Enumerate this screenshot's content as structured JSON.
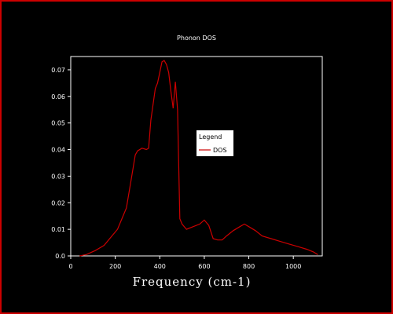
{
  "chart_data": {
    "type": "line",
    "title": "Phonon DOS",
    "xlabel": "Frequency (cm-1)",
    "ylabel": "",
    "xlim": [
      0,
      1130
    ],
    "ylim": [
      0,
      0.075
    ],
    "x_ticks": [
      0,
      200,
      400,
      600,
      800,
      1000
    ],
    "x_tick_labels": [
      "0",
      "200",
      "400",
      "600",
      "800",
      "1000"
    ],
    "y_ticks": [
      0,
      0.01,
      0.02,
      0.03,
      0.04,
      0.05,
      0.06,
      0.07
    ],
    "y_tick_labels": [
      "0.0",
      "0.01",
      "0.02",
      "0.03",
      "0.04",
      "0.05",
      "0.06",
      "0.07"
    ],
    "grid": false,
    "legend": {
      "title": "Legend",
      "placement": "right"
    },
    "series": [
      {
        "name": "DOS",
        "color": "#cc0000",
        "x": [
          40,
          70,
          110,
          150,
          180,
          210,
          230,
          250,
          270,
          290,
          300,
          320,
          340,
          350,
          360,
          380,
          390,
          400,
          410,
          420,
          430,
          440,
          450,
          460,
          470,
          480,
          490,
          500,
          520,
          550,
          580,
          600,
          620,
          640,
          660,
          680,
          700,
          730,
          760,
          780,
          800,
          830,
          860,
          900,
          940,
          980,
          1020,
          1060,
          1090,
          1110
        ],
        "y": [
          0.0,
          0.0005,
          0.002,
          0.004,
          0.007,
          0.01,
          0.014,
          0.018,
          0.028,
          0.038,
          0.0395,
          0.0405,
          0.04,
          0.0405,
          0.051,
          0.063,
          0.065,
          0.069,
          0.073,
          0.0735,
          0.072,
          0.069,
          0.062,
          0.0555,
          0.0655,
          0.055,
          0.014,
          0.012,
          0.01,
          0.011,
          0.012,
          0.0135,
          0.0115,
          0.0065,
          0.006,
          0.006,
          0.0075,
          0.0095,
          0.011,
          0.012,
          0.011,
          0.0095,
          0.0075,
          0.0065,
          0.0055,
          0.0045,
          0.0035,
          0.0025,
          0.0015,
          0.0005
        ]
      }
    ]
  }
}
